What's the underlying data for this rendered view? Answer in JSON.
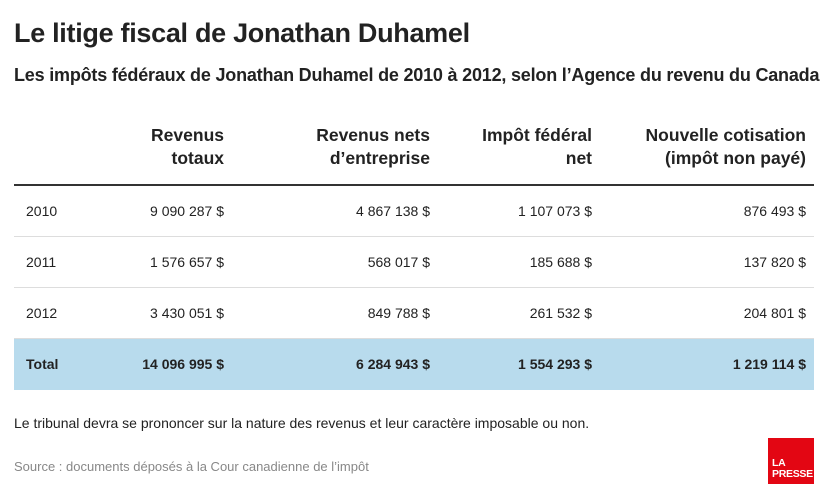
{
  "title": "Le litige fiscal de Jonathan Duhamel",
  "subtitle": "Les impôts fédéraux de Jonathan Duhamel de 2010 à 2012, selon l’Agence du revenu du Canada",
  "table": {
    "headers": [
      {
        "line1": "",
        "line2": ""
      },
      {
        "line1": "Revenus",
        "line2": "totaux"
      },
      {
        "line1": "Revenus nets",
        "line2": "d’entreprise"
      },
      {
        "line1": "Impôt fédéral",
        "line2": "net"
      },
      {
        "line1": "Nouvelle cotisation",
        "line2": "(impôt non payé)"
      }
    ],
    "rows": [
      {
        "year": "2010",
        "total": "9 090 287 $",
        "net": "4 867 138 $",
        "tax": "1 107 073 $",
        "assess": "876 493 $"
      },
      {
        "year": "2011",
        "total": "1 576 657 $",
        "net": "568 017 $",
        "tax": "185 688 $",
        "assess": "137 820 $"
      },
      {
        "year": "2012",
        "total": "3 430 051 $",
        "net": "849 788 $",
        "tax": "261 532 $",
        "assess": "204 801 $"
      }
    ],
    "total_row": {
      "year": "Total",
      "total": "14 096 995 $",
      "net": "6 284 943 $",
      "tax": "1 554 293 $",
      "assess": "1 219 114 $"
    }
  },
  "note": "Le tribunal devra se prononcer sur la nature des revenus et leur caractère imposable ou non.",
  "source": "Source : documents déposés à la Cour canadienne de l’impôt",
  "logo": {
    "line1": "LA",
    "line2": "PRESSE"
  },
  "colors": {
    "total_row_bg": "#b8dbed",
    "logo_bg": "#e30613"
  }
}
